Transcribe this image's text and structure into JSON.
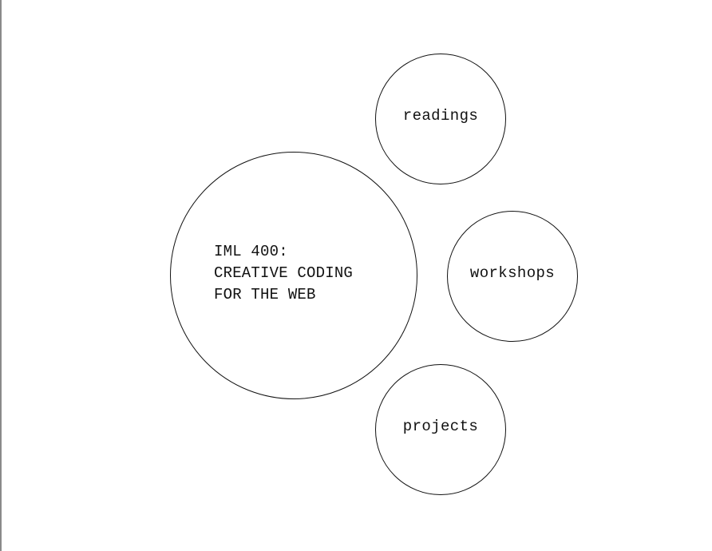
{
  "course": {
    "title": "IML 400:\nCREATIVE CODING\nFOR THE WEB"
  },
  "navigation": {
    "readings": "readings",
    "workshops": "workshops",
    "projects": "projects"
  },
  "colors": {
    "background": "#ffffff",
    "stroke": "#111111",
    "left_edge": "#8a8a8a"
  }
}
